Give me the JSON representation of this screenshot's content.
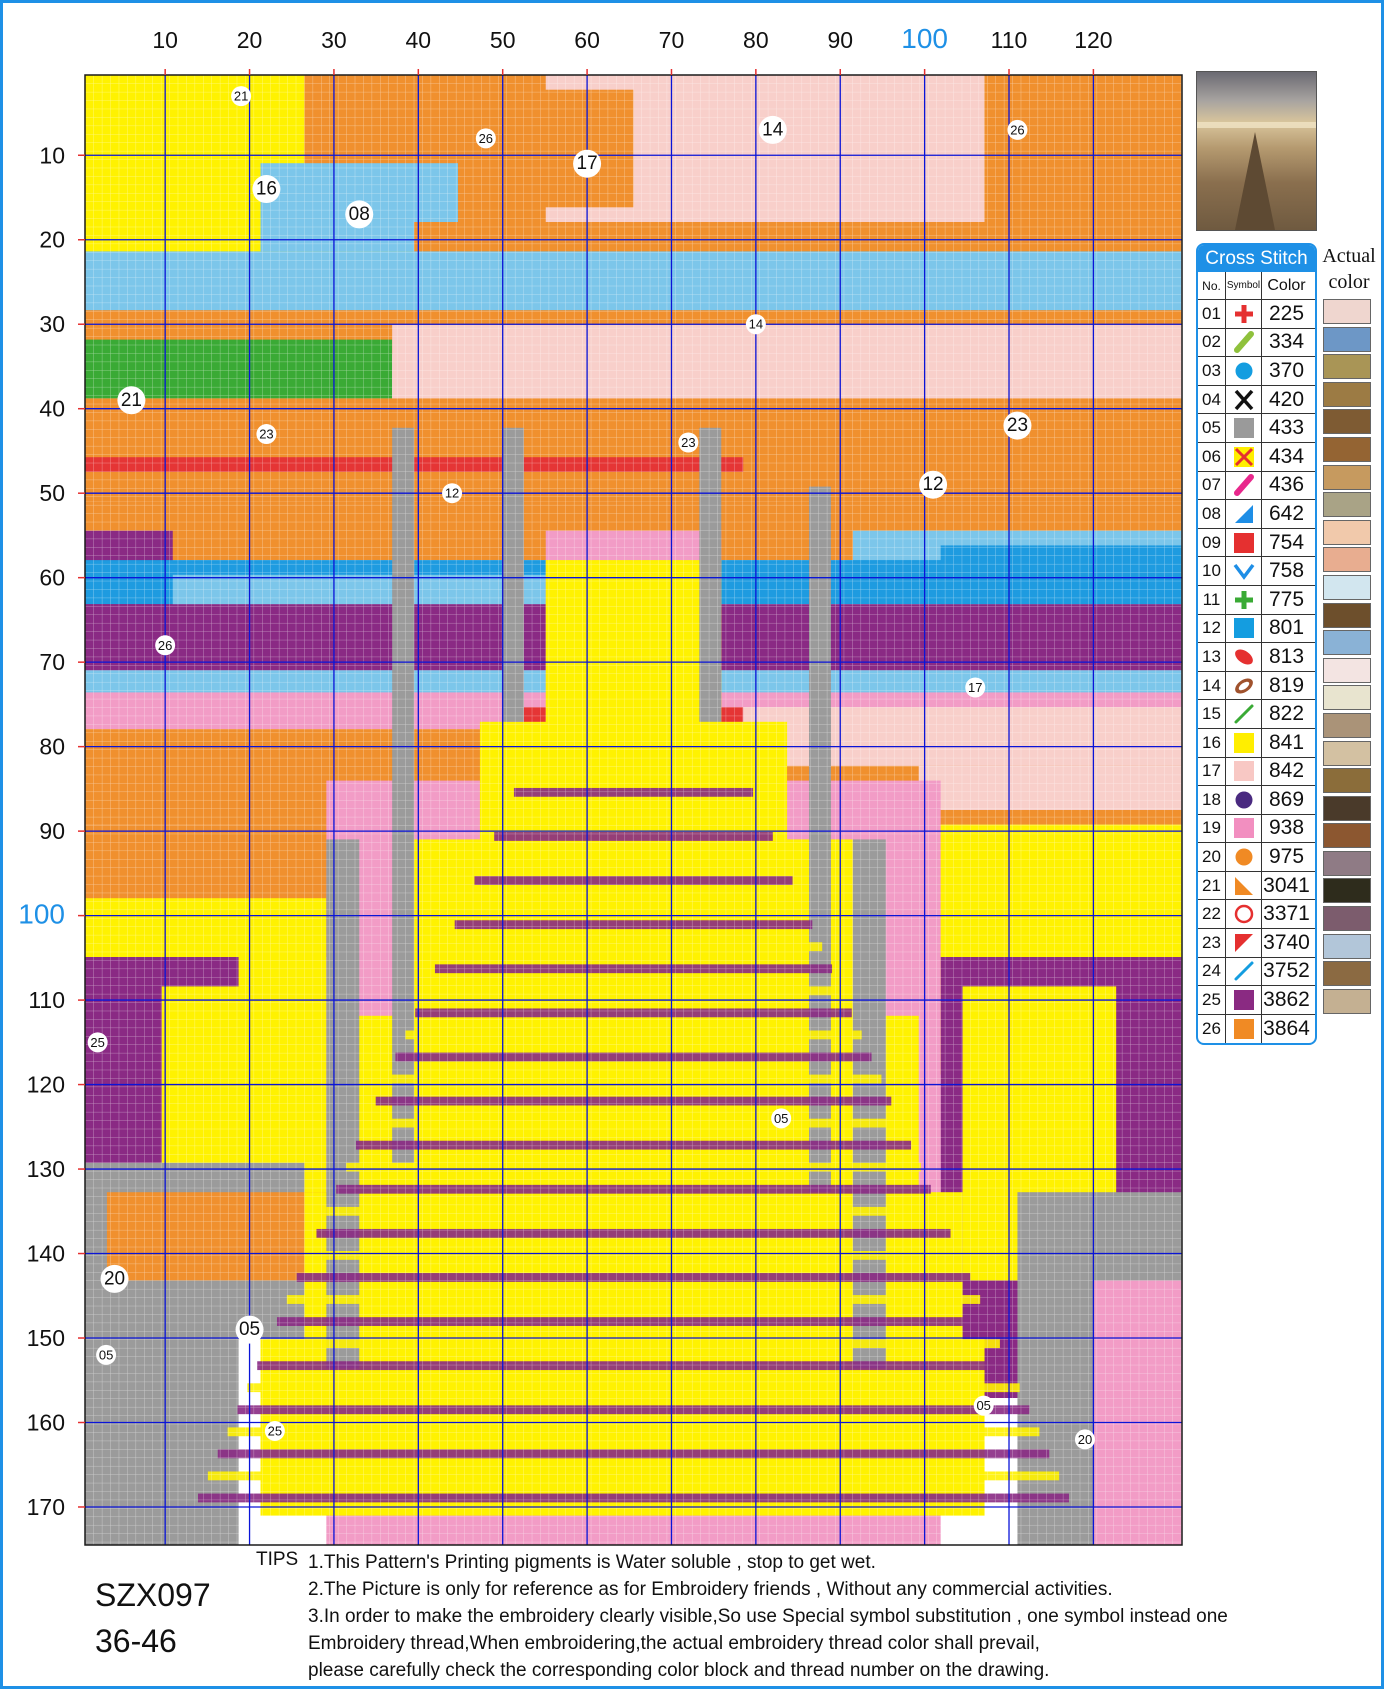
{
  "chart_data": {
    "type": "heatmap",
    "title": "",
    "x_axis": {
      "ticks": [
        10,
        20,
        30,
        40,
        50,
        60,
        70,
        80,
        90,
        100,
        110,
        120
      ],
      "accent_tick": 100,
      "range": [
        1,
        130
      ]
    },
    "y_axis": {
      "ticks": [
        10,
        20,
        30,
        40,
        50,
        60,
        70,
        80,
        90,
        100,
        110,
        120,
        130,
        140,
        150,
        160,
        170
      ],
      "accent_tick": 100,
      "range": [
        1,
        174
      ]
    },
    "grid": true,
    "region_labels": [
      {
        "text": "21",
        "x": 19,
        "y": 3,
        "size": "small"
      },
      {
        "text": "26",
        "x": 48,
        "y": 8,
        "size": "small"
      },
      {
        "text": "14",
        "x": 82,
        "y": 7,
        "size": "large"
      },
      {
        "text": "26",
        "x": 111,
        "y": 7,
        "size": "small"
      },
      {
        "text": "17",
        "x": 60,
        "y": 11,
        "size": "large"
      },
      {
        "text": "16",
        "x": 22,
        "y": 14,
        "size": "large"
      },
      {
        "text": "08",
        "x": 33,
        "y": 17,
        "size": "large"
      },
      {
        "text": "14",
        "x": 80,
        "y": 30,
        "size": "small"
      },
      {
        "text": "21",
        "x": 6,
        "y": 39,
        "size": "large"
      },
      {
        "text": "23",
        "x": 111,
        "y": 42,
        "size": "large"
      },
      {
        "text": "23",
        "x": 22,
        "y": 43,
        "size": "small"
      },
      {
        "text": "23",
        "x": 72,
        "y": 44,
        "size": "small"
      },
      {
        "text": "12",
        "x": 101,
        "y": 49,
        "size": "large"
      },
      {
        "text": "12",
        "x": 44,
        "y": 50,
        "size": "small"
      },
      {
        "text": "26",
        "x": 10,
        "y": 68,
        "size": "small"
      },
      {
        "text": "17",
        "x": 106,
        "y": 73,
        "size": "small"
      },
      {
        "text": "25",
        "x": 2,
        "y": 115,
        "size": "small"
      },
      {
        "text": "05",
        "x": 83,
        "y": 124,
        "size": "small"
      },
      {
        "text": "20",
        "x": 4,
        "y": 143,
        "size": "large"
      },
      {
        "text": "05",
        "x": 20,
        "y": 149,
        "size": "large"
      },
      {
        "text": "05",
        "x": 3,
        "y": 152,
        "size": "small"
      },
      {
        "text": "05",
        "x": 107,
        "y": 158,
        "size": "small"
      },
      {
        "text": "25",
        "x": 23,
        "y": 161,
        "size": "small"
      },
      {
        "text": "20",
        "x": 119,
        "y": 162,
        "size": "small"
      }
    ],
    "legend": [
      {
        "no": "01",
        "symbol": "plus",
        "color_code": "225",
        "symbol_color": "#e53030",
        "actual": "#efd6cf"
      },
      {
        "no": "02",
        "symbol": "slash-thick",
        "color_code": "334",
        "symbol_color": "#8fc13c",
        "actual": "#6d97c6"
      },
      {
        "no": "03",
        "symbol": "dot",
        "color_code": "370",
        "symbol_color": "#149de0",
        "actual": "#a99556"
      },
      {
        "no": "04",
        "symbol": "x-mark",
        "color_code": "420",
        "symbol_color": "#111111",
        "actual": "#9c7b44"
      },
      {
        "no": "05",
        "symbol": "square",
        "color_code": "433",
        "symbol_color": "#9a9a9a",
        "actual": "#7e5b33"
      },
      {
        "no": "06",
        "symbol": "x-on-yellow",
        "color_code": "434",
        "symbol_color": "#e53030",
        "actual": "#946433"
      },
      {
        "no": "07",
        "symbol": "slash-thick",
        "color_code": "436",
        "symbol_color": "#e8288c",
        "actual": "#c69a5f"
      },
      {
        "no": "08",
        "symbol": "triangle-br",
        "color_code": "642",
        "symbol_color": "#1e8ee6",
        "actual": "#a9a386"
      },
      {
        "no": "09",
        "symbol": "square",
        "color_code": "754",
        "symbol_color": "#e53030",
        "actual": "#f1c9ab"
      },
      {
        "no": "10",
        "symbol": "check-v",
        "color_code": "758",
        "symbol_color": "#1e8ee6",
        "actual": "#e8ad90"
      },
      {
        "no": "11",
        "symbol": "plus",
        "color_code": "775",
        "symbol_color": "#3aaa35",
        "actual": "#d2e6ef"
      },
      {
        "no": "12",
        "symbol": "square",
        "color_code": "801",
        "symbol_color": "#149de0",
        "actual": "#6d4f2c"
      },
      {
        "no": "13",
        "symbol": "leaf",
        "color_code": "813",
        "symbol_color": "#e53030",
        "actual": "#8ab2d6"
      },
      {
        "no": "14",
        "symbol": "leaf-outline",
        "color_code": "819",
        "symbol_color": "#a0522d",
        "actual": "#f3e4e2"
      },
      {
        "no": "15",
        "symbol": "slash-thin",
        "color_code": "822",
        "symbol_color": "#3aaa35",
        "actual": "#e8e4cf"
      },
      {
        "no": "16",
        "symbol": "square",
        "color_code": "841",
        "symbol_color": "#ffee00",
        "actual": "#aa9378"
      },
      {
        "no": "17",
        "symbol": "square",
        "color_code": "842",
        "symbol_color": "#f8c8c4",
        "actual": "#d3c1a2"
      },
      {
        "no": "18",
        "symbol": "dot",
        "color_code": "869",
        "symbol_color": "#4a2a80",
        "actual": "#8b6d3a"
      },
      {
        "no": "19",
        "symbol": "square",
        "color_code": "938",
        "symbol_color": "#f28fc0",
        "actual": "#4a3a2a"
      },
      {
        "no": "20",
        "symbol": "dot",
        "color_code": "975",
        "symbol_color": "#f08a24",
        "actual": "#8c5730"
      },
      {
        "no": "21",
        "symbol": "triangle-bl",
        "color_code": "3041",
        "symbol_color": "#f08a24",
        "actual": "#8f7b85"
      },
      {
        "no": "22",
        "symbol": "ring",
        "color_code": "3371",
        "symbol_color": "#e53030",
        "actual": "#2e2c1c"
      },
      {
        "no": "23",
        "symbol": "triangle-tl",
        "color_code": "3740",
        "symbol_color": "#e53030",
        "actual": "#7c5c6d"
      },
      {
        "no": "24",
        "symbol": "slash-thin",
        "color_code": "3752",
        "symbol_color": "#149de0",
        "actual": "#b2c6d9"
      },
      {
        "no": "25",
        "symbol": "square",
        "color_code": "3862",
        "symbol_color": "#8a2a82",
        "actual": "#8b6a42"
      },
      {
        "no": "26",
        "symbol": "square",
        "color_code": "3864",
        "symbol_color": "#f08a24",
        "actual": "#c4b092"
      }
    ]
  },
  "legend_title": "Cross Stitch",
  "legend_headers": {
    "no": "No.",
    "symbol": "Symbol",
    "color": "Color"
  },
  "actual_color_label_1": "Actual",
  "actual_color_label_2": "color",
  "pattern_code": "SZX097",
  "pattern_size": "36-46",
  "tips_label": "TIPS",
  "tips": [
    "1.This Pattern's Printing pigments is Water soluble , stop to get wet.",
    "2.The Picture is only for reference as for Embroidery friends , Without any commercial activities.",
    "3.In order to make the embroidery clearly visible,So use Special symbol substitution , one symbol instead one",
    " Embroidery thread,When embroidering,the actual embroidery thread color shall prevail,",
    " please carefully check the corresponding color block and thread number on the drawing."
  ]
}
